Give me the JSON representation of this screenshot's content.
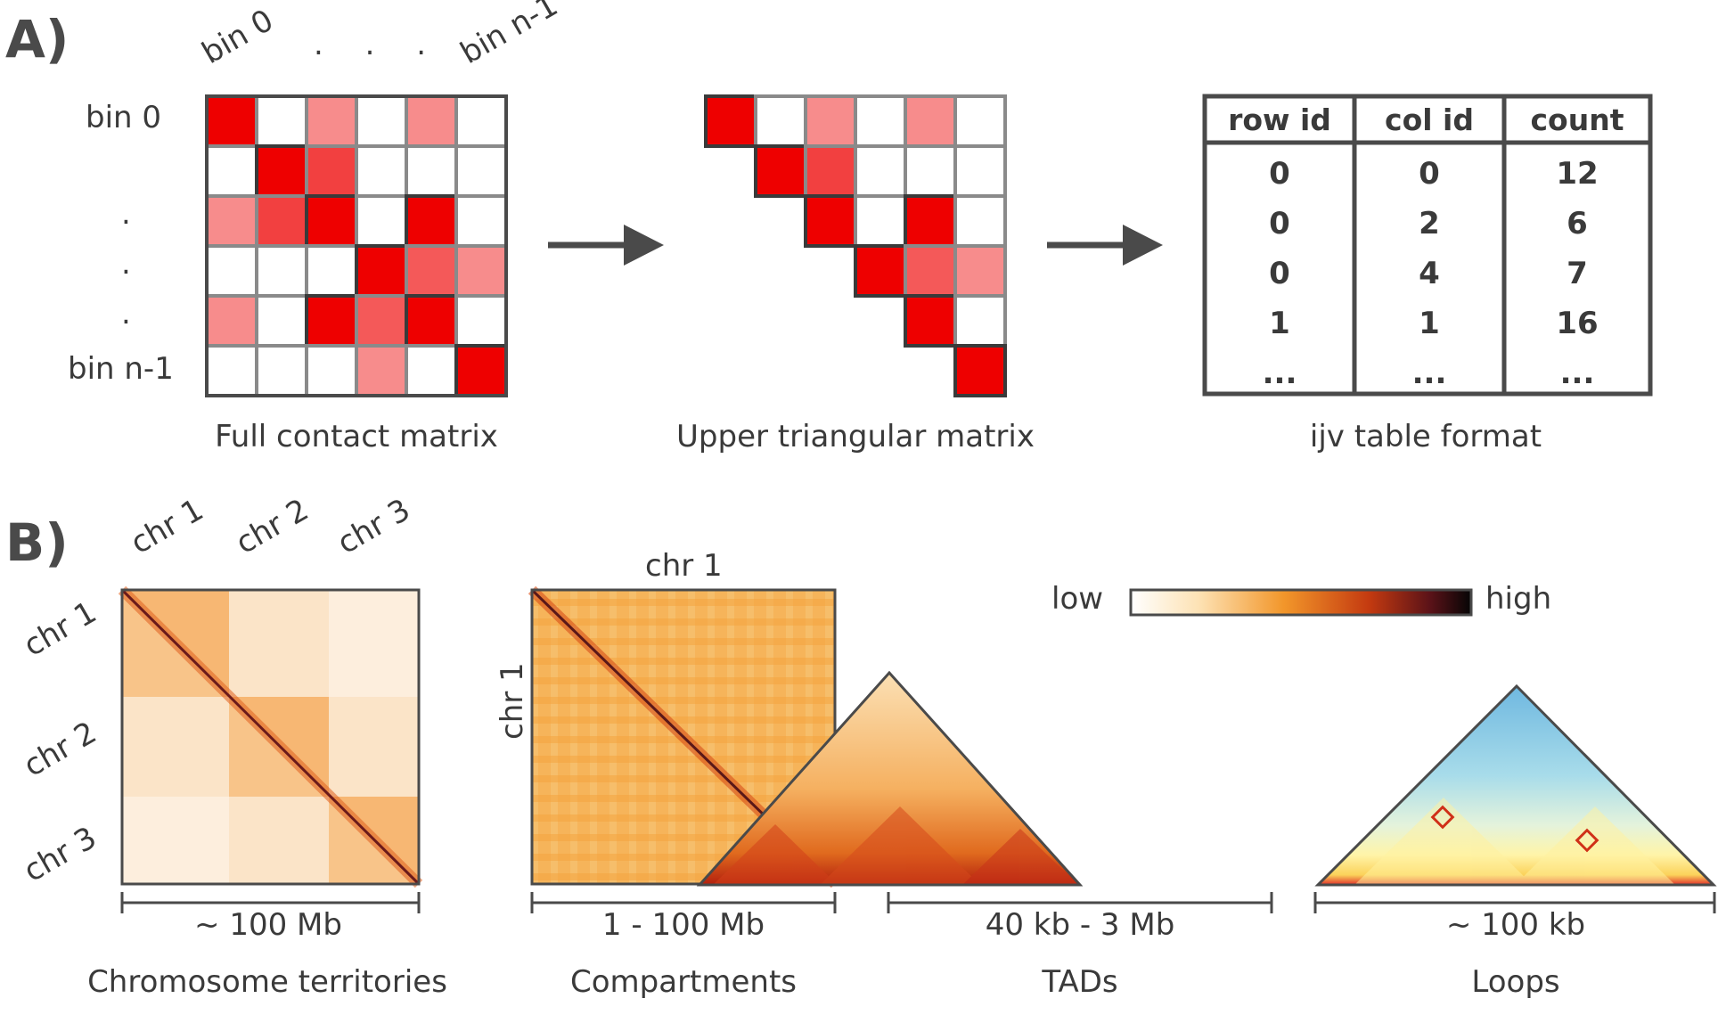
{
  "panel_a": {
    "label": "A)",
    "col_labels": {
      "first": "bin 0",
      "dots": ". . .",
      "last": "bin n-1"
    },
    "row_labels": {
      "first": "bin 0",
      "dots": [
        ".",
        ".",
        "."
      ],
      "last": "bin n-1"
    },
    "full_matrix": [
      [
        1.0,
        0.0,
        0.45,
        0.0,
        0.45,
        0.0
      ],
      [
        0.0,
        1.0,
        0.75,
        0.0,
        0.0,
        0.0
      ],
      [
        0.45,
        0.75,
        1.0,
        0.0,
        1.0,
        0.0
      ],
      [
        0.0,
        0.0,
        0.0,
        1.0,
        0.65,
        0.45
      ],
      [
        0.45,
        0.0,
        1.0,
        0.65,
        1.0,
        0.0
      ],
      [
        0.0,
        0.0,
        0.0,
        0.45,
        0.0,
        1.0
      ]
    ],
    "captions": {
      "full": "Full contact matrix",
      "upper": "Upper triangular matrix",
      "ijv": "ijv table format"
    },
    "ijv_table": {
      "headers": [
        "row id",
        "col id",
        "count"
      ],
      "rows": [
        [
          "0",
          "0",
          "12"
        ],
        [
          "0",
          "2",
          "6"
        ],
        [
          "0",
          "4",
          "7"
        ],
        [
          "1",
          "1",
          "16"
        ],
        [
          "...",
          "...",
          "..."
        ]
      ]
    },
    "colors": {
      "high": "#ee0000",
      "grid": "#8a8a8a",
      "border": "#4a4a4a",
      "arrow": "#4a4a4a"
    }
  },
  "panel_b": {
    "label": "B)",
    "chr_col_labels": [
      "chr 1",
      "chr 2",
      "chr 3"
    ],
    "chr_row_labels": [
      "chr 1",
      "chr 2",
      "chr 3"
    ],
    "compartment_top_label": "chr 1",
    "compartment_side_label": "chr 1",
    "colorbar": {
      "low": "low",
      "high": "high"
    },
    "scales": [
      "~ 100 Mb",
      "1 - 100 Mb",
      "40 kb - 3 Mb",
      "~ 100 kb"
    ],
    "captions": [
      "Chromosome territories",
      "Compartments",
      "TADs",
      "Loops"
    ]
  }
}
